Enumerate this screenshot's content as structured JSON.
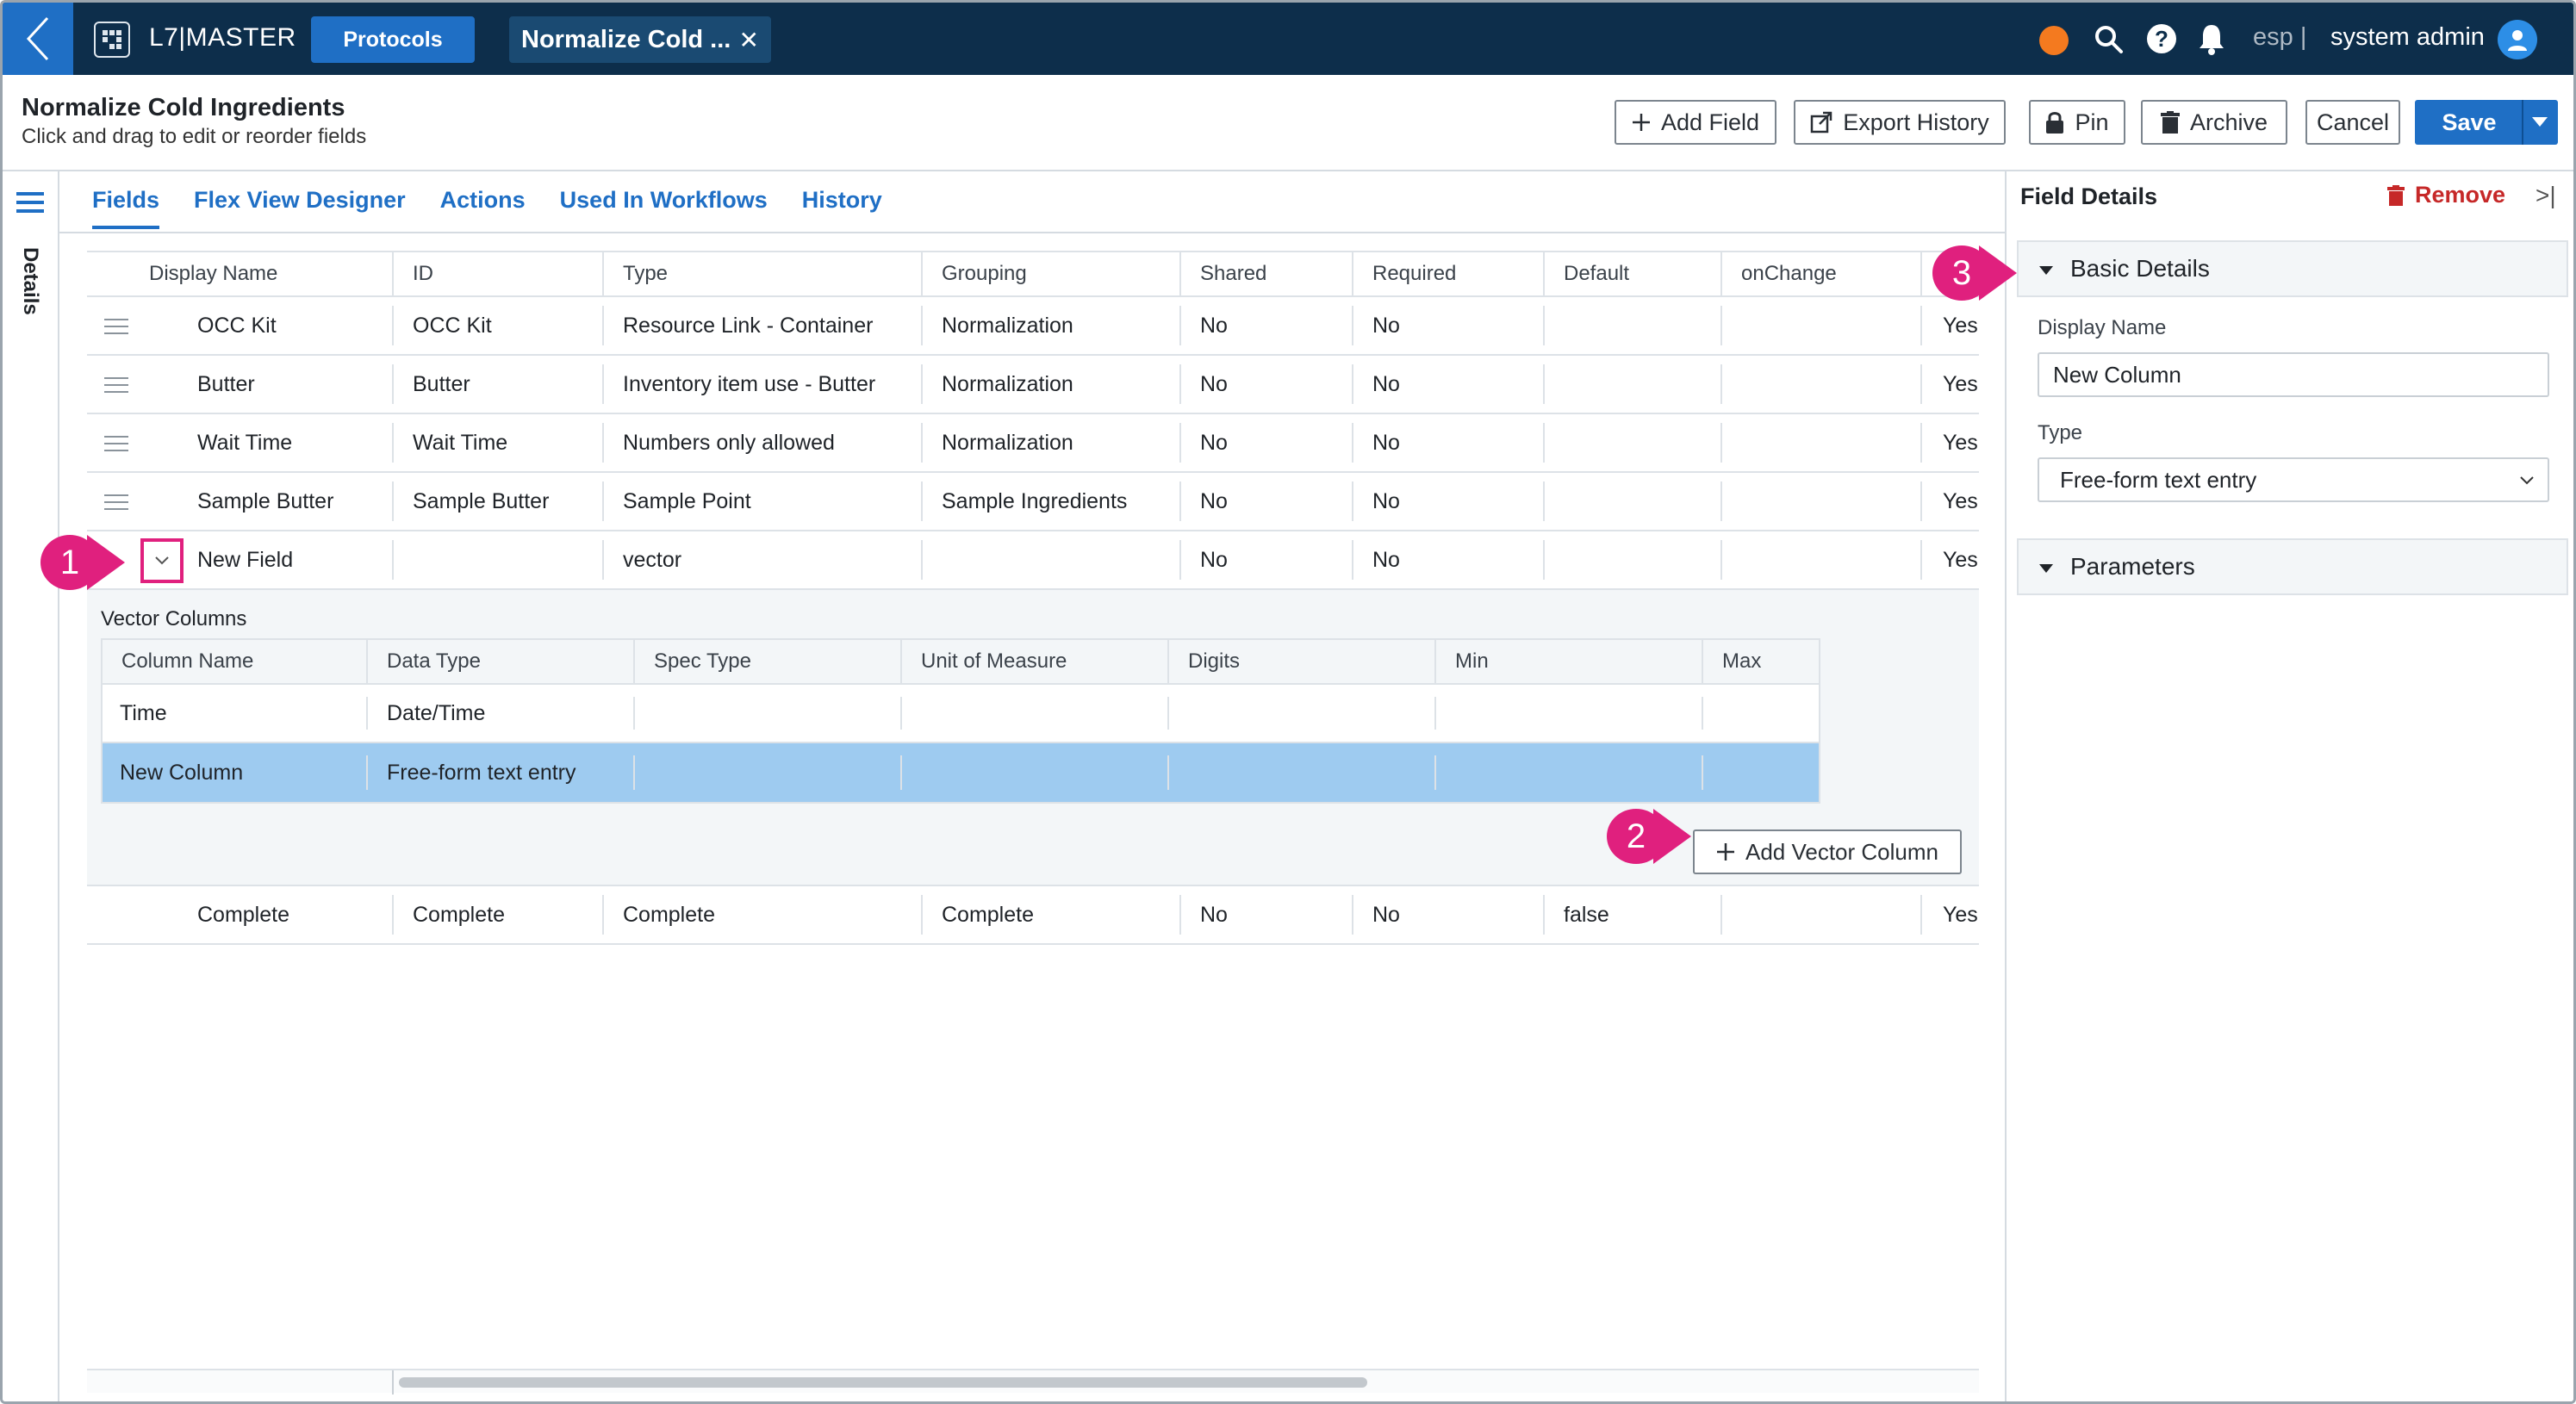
{
  "topbar": {
    "app_name": "L7|MASTER",
    "nav_protocols": "Protocols",
    "open_tab": "Normalize Cold ...",
    "lang": "esp |",
    "user": "system admin",
    "status_color": "#f47a1f"
  },
  "header": {
    "title": "Normalize Cold Ingredients",
    "subtitle": "Click and drag to edit or reorder fields",
    "buttons": {
      "add_field": "Add Field",
      "export_history": "Export History",
      "pin": "Pin",
      "archive": "Archive",
      "cancel": "Cancel",
      "save": "Save"
    }
  },
  "rail": {
    "label": "Details"
  },
  "tabs": [
    "Fields",
    "Flex View Designer",
    "Actions",
    "Used In Workflows",
    "History"
  ],
  "grid": {
    "columns": [
      "Display Name",
      "ID",
      "Type",
      "Grouping",
      "Shared",
      "Required",
      "Default",
      "onChange"
    ],
    "rows": [
      {
        "name": "OCC Kit",
        "id": "OCC Kit",
        "type": "Resource Link - Container",
        "grouping": "Normalization",
        "shared": "No",
        "required": "No",
        "default": "",
        "onchange": "",
        "extra": "Yes"
      },
      {
        "name": "Butter",
        "id": "Butter",
        "type": "Inventory item use - Butter",
        "grouping": "Normalization",
        "shared": "No",
        "required": "No",
        "default": "",
        "onchange": "",
        "extra": "Yes"
      },
      {
        "name": "Wait Time",
        "id": "Wait Time",
        "type": "Numbers only allowed",
        "grouping": "Normalization",
        "shared": "No",
        "required": "No",
        "default": "",
        "onchange": "",
        "extra": "Yes"
      },
      {
        "name": "Sample Butter",
        "id": "Sample Butter",
        "type": "Sample Point",
        "grouping": "Sample Ingredients",
        "shared": "No",
        "required": "No",
        "default": "",
        "onchange": "",
        "extra": "Yes"
      },
      {
        "name": "New Field",
        "id": "",
        "type": "vector",
        "grouping": "",
        "shared": "No",
        "required": "No",
        "default": "",
        "onchange": "",
        "extra": "Yes"
      }
    ],
    "last_row": {
      "name": "Complete",
      "id": "Complete",
      "type": "Complete",
      "grouping": "Complete",
      "shared": "No",
      "required": "No",
      "default": "false",
      "onchange": "",
      "extra": "Yes"
    }
  },
  "vector": {
    "title": "Vector Columns",
    "columns": [
      "Column Name",
      "Data Type",
      "Spec Type",
      "Unit of Measure",
      "Digits",
      "Min",
      "Max"
    ],
    "rows": [
      {
        "name": "Time",
        "data_type": "Date/Time"
      },
      {
        "name": "New Column",
        "data_type": "Free-form text entry"
      }
    ],
    "add_button": "Add Vector Column"
  },
  "panel": {
    "title": "Field Details",
    "remove": "Remove",
    "basic_details": "Basic Details",
    "display_name_label": "Display Name",
    "display_name_value": "New Column",
    "type_label": "Type",
    "type_value": "Free-form text entry",
    "parameters": "Parameters"
  },
  "callouts": [
    "1",
    "2",
    "3"
  ],
  "colors": {
    "accent": "#1f6fc5",
    "topbar": "#0d2e4b",
    "callout": "#e0207e",
    "remove": "#c62828",
    "selected_row": "#9ecbf0"
  }
}
